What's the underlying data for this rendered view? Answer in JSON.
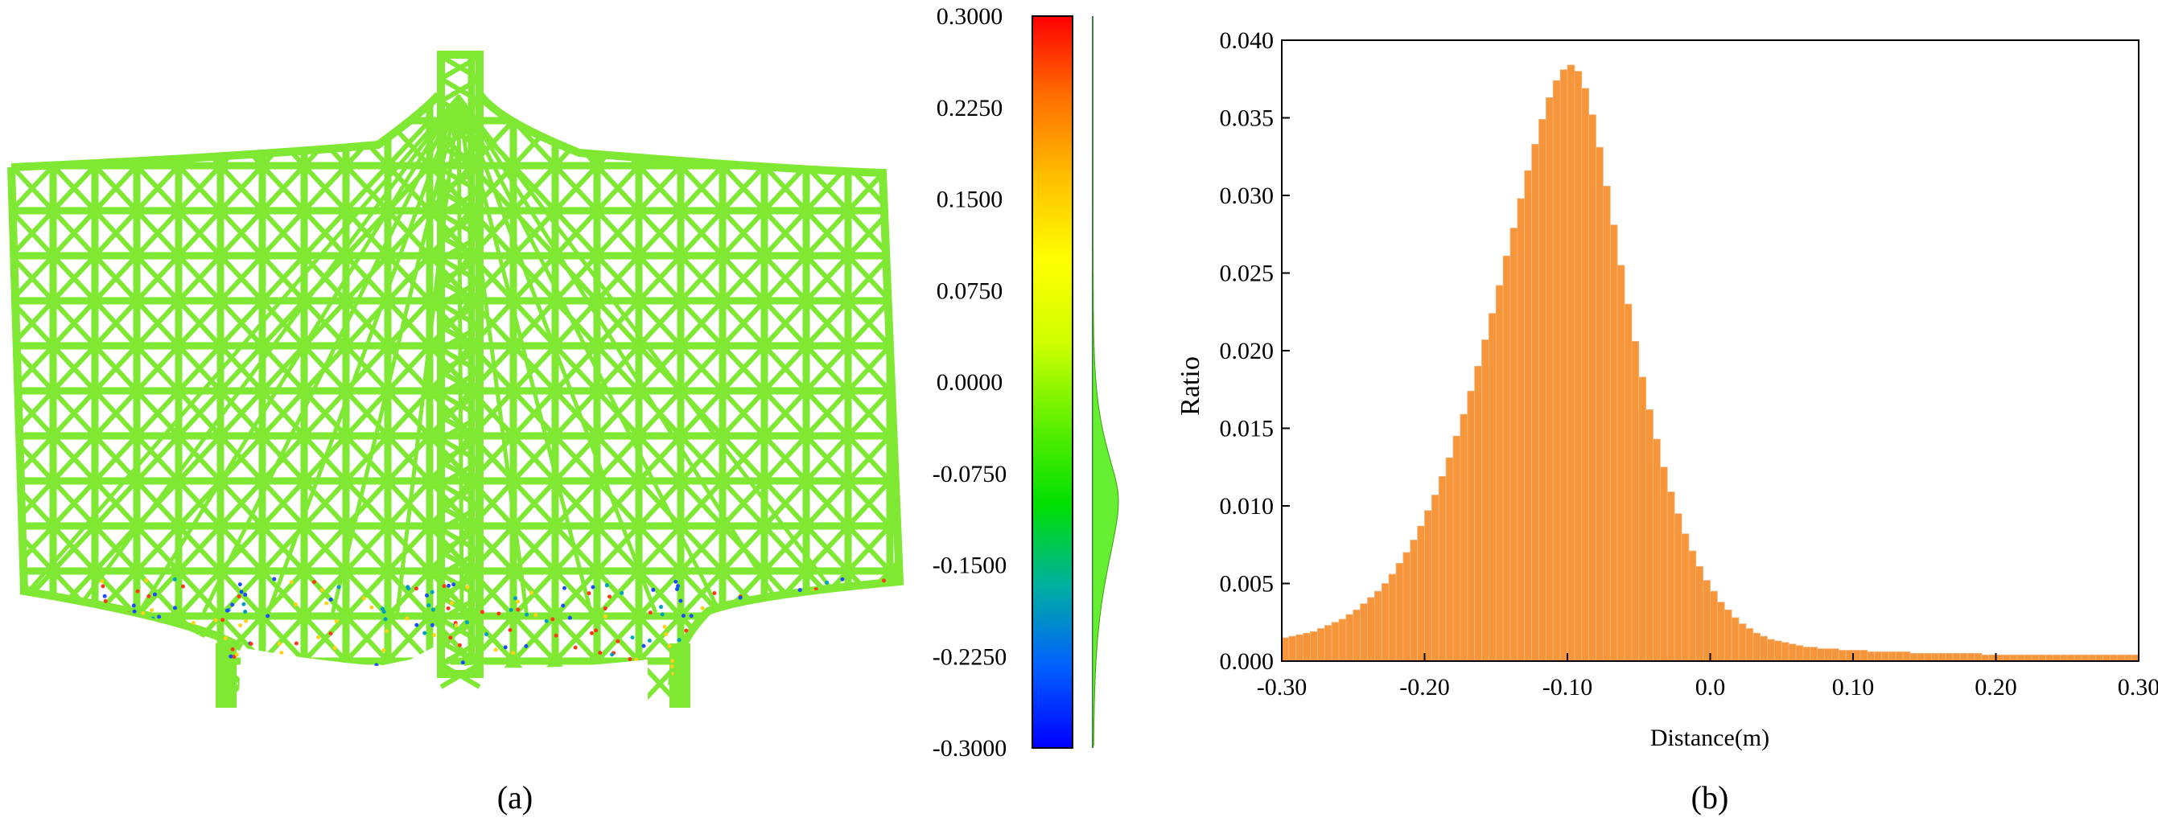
{
  "panel_a": {
    "label": "(a)",
    "colorbar": {
      "ticks": [
        "0.3000",
        "0.2250",
        "0.1500",
        "0.0750",
        "0.0000",
        "-0.0750",
        "-0.1500",
        "-0.2250",
        "-0.3000"
      ],
      "range": [
        -0.3,
        0.3
      ],
      "colors": [
        "#0000ff",
        "#0060ff",
        "#00b0a0",
        "#00e000",
        "#60f000",
        "#d0ff00",
        "#ffff00",
        "#ffc000",
        "#ff7000",
        "#ff0000"
      ]
    },
    "structure_color": "#7ee832"
  },
  "panel_b": {
    "label": "(b)"
  },
  "chart_data": {
    "type": "bar",
    "title": "",
    "xlabel": "Distance(m)",
    "ylabel": "Ratio",
    "xlim": [
      -0.3,
      0.3
    ],
    "ylim": [
      0,
      0.04
    ],
    "xticks": [
      "-0.30",
      "-0.20",
      "-0.10",
      "0.0",
      "0.10",
      "0.20",
      "0.30"
    ],
    "yticks": [
      "0.000",
      "0.005",
      "0.010",
      "0.015",
      "0.020",
      "0.025",
      "0.030",
      "0.035",
      "0.040"
    ],
    "bar_color": "#f7953b",
    "bin_width": 0.005,
    "bin_start": -0.3,
    "values": [
      0.0015,
      0.0016,
      0.0017,
      0.0018,
      0.0019,
      0.0021,
      0.0023,
      0.0025,
      0.0027,
      0.003,
      0.0033,
      0.0037,
      0.0041,
      0.0045,
      0.005,
      0.0056,
      0.0063,
      0.007,
      0.0078,
      0.0087,
      0.0097,
      0.0107,
      0.0119,
      0.0131,
      0.0145,
      0.0159,
      0.0174,
      0.019,
      0.0207,
      0.0224,
      0.0242,
      0.0261,
      0.0279,
      0.0298,
      0.0316,
      0.0333,
      0.0349,
      0.0363,
      0.0374,
      0.0381,
      0.0384,
      0.038,
      0.0369,
      0.0352,
      0.0331,
      0.0306,
      0.0281,
      0.0255,
      0.023,
      0.0206,
      0.0183,
      0.0162,
      0.0143,
      0.0125,
      0.0109,
      0.0095,
      0.0082,
      0.0071,
      0.0061,
      0.0052,
      0.0045,
      0.0038,
      0.0033,
      0.0028,
      0.0024,
      0.0021,
      0.0018,
      0.0016,
      0.0014,
      0.0013,
      0.0012,
      0.0011,
      0.001,
      0.0009,
      0.0009,
      0.0008,
      0.0008,
      0.0008,
      0.0007,
      0.0007,
      0.0007,
      0.0007,
      0.0006,
      0.0006,
      0.0006,
      0.0006,
      0.0006,
      0.0006,
      0.0005,
      0.0005,
      0.0005,
      0.0005,
      0.0005,
      0.0005,
      0.0005,
      0.0005,
      0.0005,
      0.0005,
      0.0004,
      0.0004,
      0.0004,
      0.0004,
      0.0004,
      0.0004,
      0.0004,
      0.0004,
      0.0004,
      0.0004,
      0.0004,
      0.0004,
      0.0004,
      0.0004,
      0.0004,
      0.0004,
      0.0004,
      0.0004,
      0.0004,
      0.0004,
      0.0004,
      0.0004
    ]
  }
}
